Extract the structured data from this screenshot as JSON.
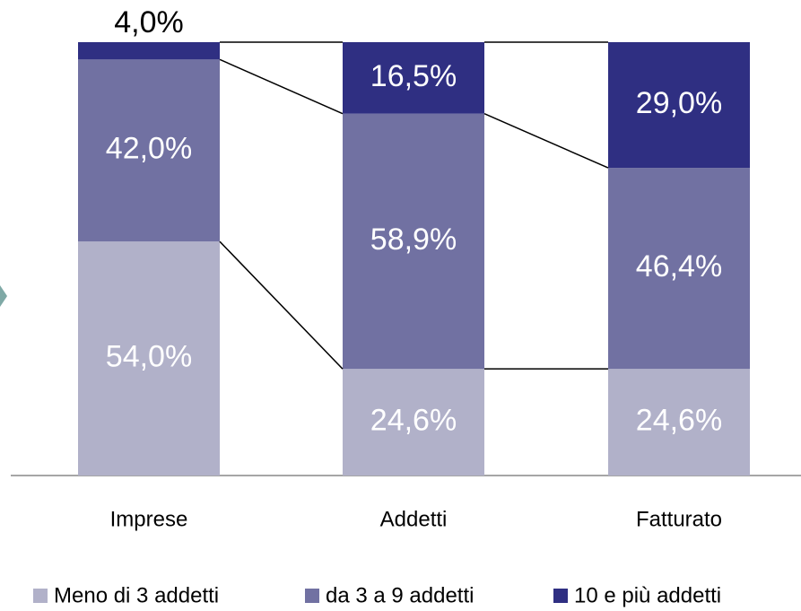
{
  "chart_data": {
    "type": "stacked_bar",
    "categories": [
      "Imprese",
      "Addetti",
      "Fatturato"
    ],
    "series": [
      {
        "name": "Meno di 3 addetti",
        "color": "#b1b1c9",
        "values": [
          54.0,
          24.6,
          24.6
        ],
        "value_labels": [
          "54,0%",
          "24,6%",
          "24,6%"
        ]
      },
      {
        "name": "da 3 a 9 addetti",
        "color": "#7171a2",
        "values": [
          42.0,
          58.9,
          46.4
        ],
        "value_labels": [
          "42,0%",
          "58,9%",
          "46,4%"
        ]
      },
      {
        "name": "10 e più addetti",
        "color": "#2f2f82",
        "values": [
          4.0,
          16.5,
          29.0
        ],
        "value_labels": [
          "4,0%",
          "16,5%",
          "29,0%"
        ]
      }
    ]
  }
}
